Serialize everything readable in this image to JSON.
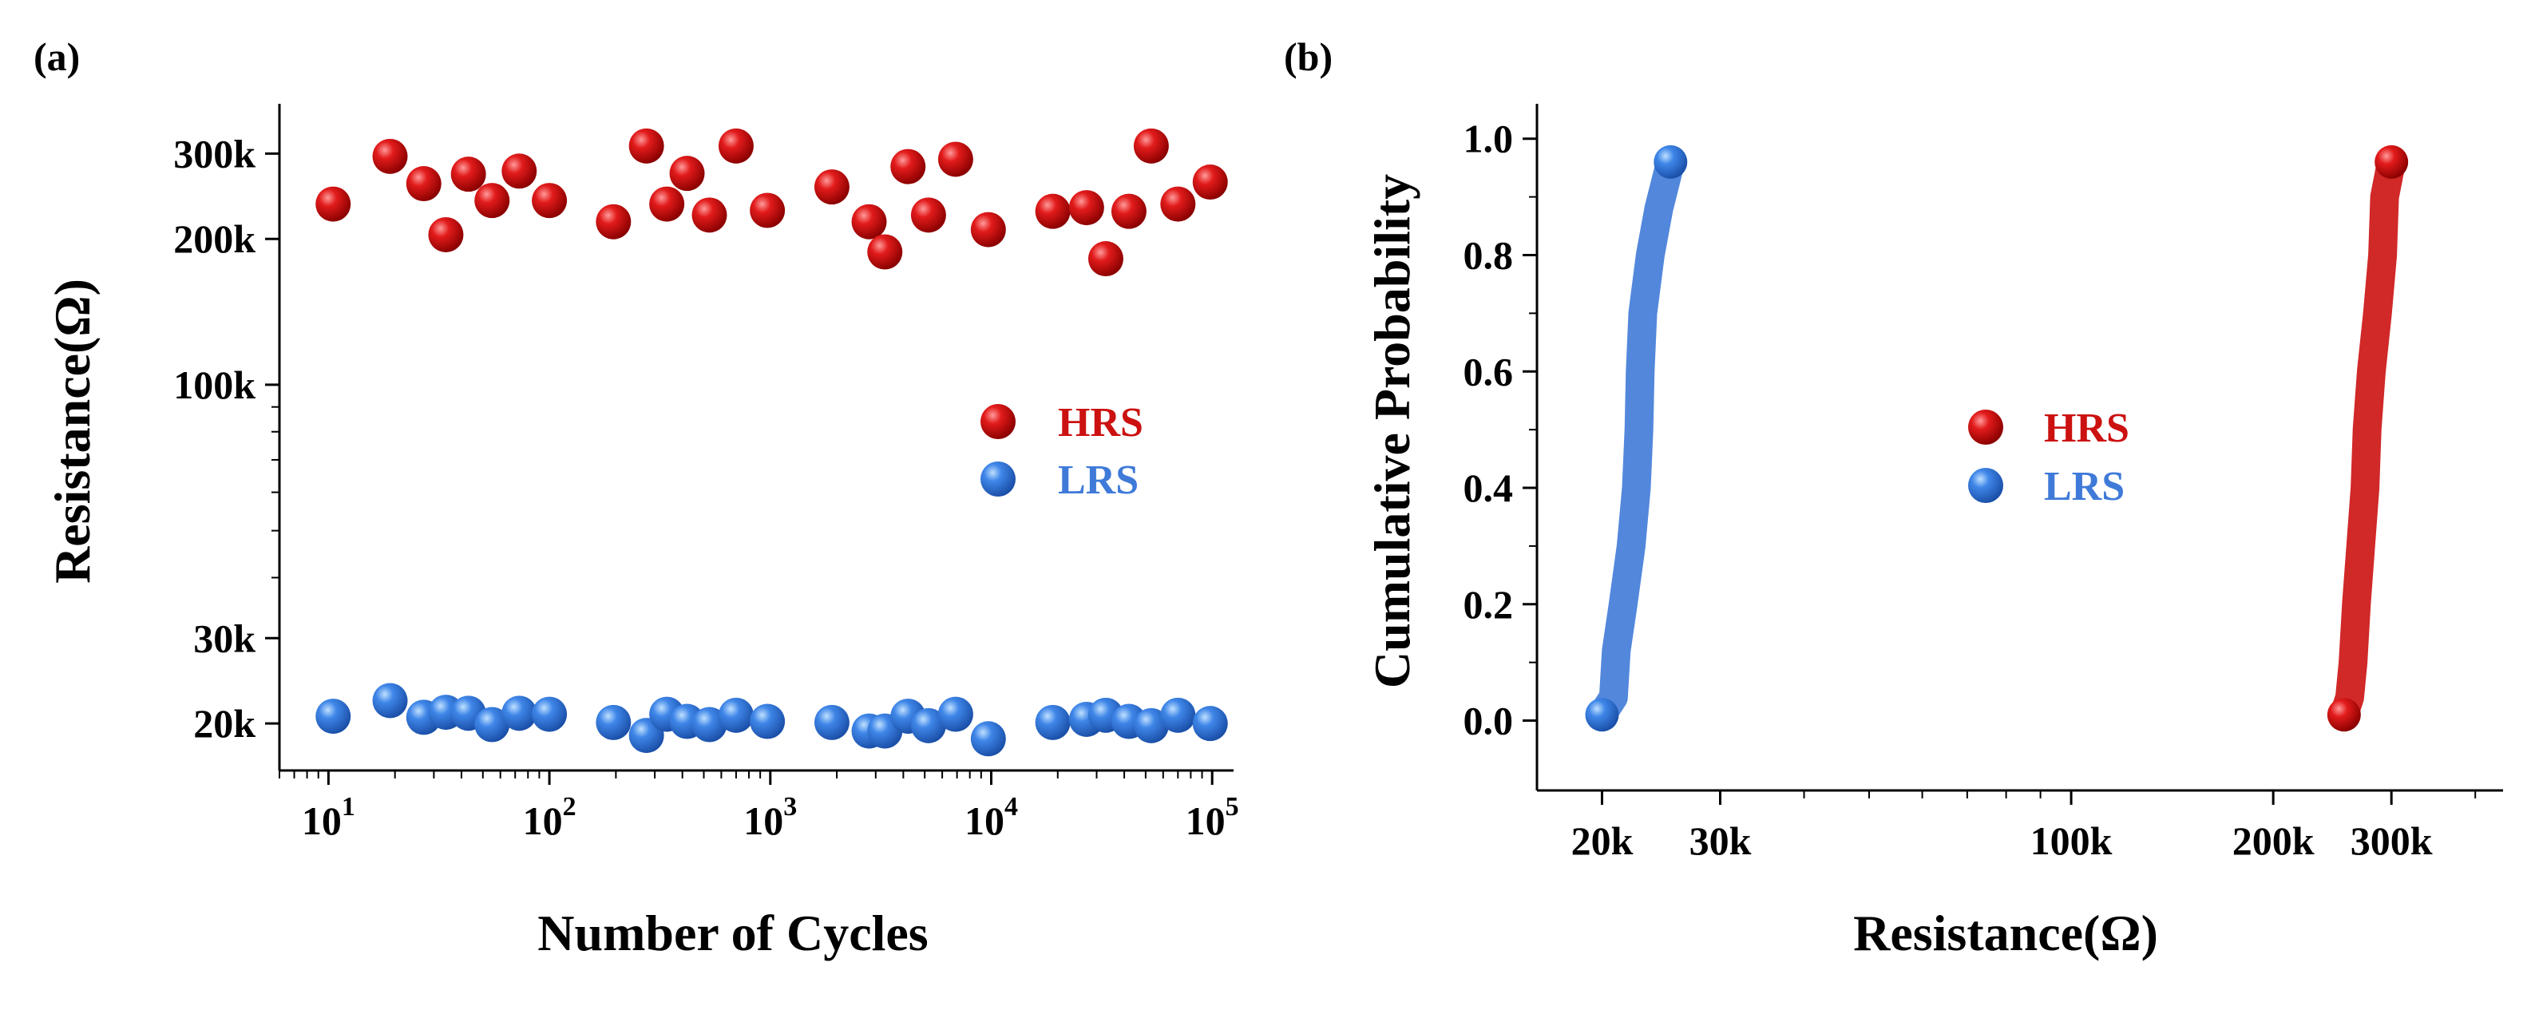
{
  "chart_data": [
    {
      "panel": "(a)",
      "type": "scatter",
      "xscale": "log",
      "yscale": "log",
      "xlabel": "Number of Cycles",
      "ylabel": "Resistance(Ω)",
      "xlim": [
        6,
        125000
      ],
      "ylim": [
        16000,
        380000
      ],
      "xticks": [
        {
          "value": 10,
          "base": "10",
          "exp": "1"
        },
        {
          "value": 100,
          "base": "10",
          "exp": "2"
        },
        {
          "value": 1000,
          "base": "10",
          "exp": "3"
        },
        {
          "value": 10000,
          "base": "10",
          "exp": "4"
        },
        {
          "value": 100000,
          "base": "10",
          "exp": "5"
        }
      ],
      "yticks": [
        {
          "value": 20000,
          "label": "20k"
        },
        {
          "value": 30000,
          "label": "30k"
        },
        {
          "value": 100000,
          "label": "100k"
        },
        {
          "value": 200000,
          "label": "200k"
        },
        {
          "value": 300000,
          "label": "300k"
        }
      ],
      "legend": {
        "position": "center-right",
        "entries": [
          "HRS",
          "LRS"
        ]
      },
      "series": [
        {
          "name": "HRS",
          "color": "#cc1111",
          "points": [
            [
              10.5,
              236000
            ],
            [
              19,
              296000
            ],
            [
              27,
              260000
            ],
            [
              34,
              204000
            ],
            [
              43,
              272000
            ],
            [
              55,
              240000
            ],
            [
              73,
              276000
            ],
            [
              100,
              240000
            ],
            [
              195,
              217000
            ],
            [
              275,
              311000
            ],
            [
              340,
              236000
            ],
            [
              420,
              273000
            ],
            [
              530,
              224000
            ],
            [
              700,
              311000
            ],
            [
              970,
              229000
            ],
            [
              1900,
              256000
            ],
            [
              2800,
              217000
            ],
            [
              3300,
              188000
            ],
            [
              4200,
              282000
            ],
            [
              5200,
              224000
            ],
            [
              6900,
              292000
            ],
            [
              9700,
              209000
            ],
            [
              19000,
              228000
            ],
            [
              27000,
              232000
            ],
            [
              33000,
              182000
            ],
            [
              42000,
              228000
            ],
            [
              53000,
              311000
            ],
            [
              70000,
              236000
            ],
            [
              98000,
              262000
            ]
          ]
        },
        {
          "name": "LRS",
          "color": "#3f7ad8",
          "points": [
            [
              10.5,
              20700
            ],
            [
              19,
              22300
            ],
            [
              27,
              20600
            ],
            [
              34,
              21100
            ],
            [
              43,
              21000
            ],
            [
              55,
              19900
            ],
            [
              73,
              21000
            ],
            [
              100,
              20900
            ],
            [
              195,
              20100
            ],
            [
              275,
              18900
            ],
            [
              340,
              20900
            ],
            [
              420,
              20200
            ],
            [
              530,
              19900
            ],
            [
              700,
              20800
            ],
            [
              970,
              20200
            ],
            [
              1900,
              20100
            ],
            [
              2800,
              19300
            ],
            [
              3300,
              19300
            ],
            [
              4200,
              20700
            ],
            [
              5200,
              19800
            ],
            [
              6900,
              20900
            ],
            [
              9700,
              18600
            ],
            [
              19000,
              20100
            ],
            [
              27000,
              20400
            ],
            [
              33000,
              20800
            ],
            [
              42000,
              20200
            ],
            [
              53000,
              19800
            ],
            [
              70000,
              20800
            ],
            [
              98000,
              20000
            ]
          ]
        }
      ]
    },
    {
      "panel": "(b)",
      "type": "line",
      "xscale": "log",
      "xlabel": "Resistance(Ω)",
      "ylabel": "Cumulative Probability",
      "xlim": [
        16000,
        440000
      ],
      "ylim": [
        -0.12,
        1.06
      ],
      "xticks": [
        {
          "value": 20000,
          "label": "20k"
        },
        {
          "value": 30000,
          "label": "30k"
        },
        {
          "value": 100000,
          "label": "100k"
        },
        {
          "value": 200000,
          "label": "200k"
        },
        {
          "value": 300000,
          "label": "300k"
        }
      ],
      "yticks": [
        {
          "value": 0.0,
          "label": "0.0"
        },
        {
          "value": 0.2,
          "label": "0.2"
        },
        {
          "value": 0.4,
          "label": "0.4"
        },
        {
          "value": 0.6,
          "label": "0.6"
        },
        {
          "value": 0.8,
          "label": "0.8"
        },
        {
          "value": 1.0,
          "label": "1.0"
        }
      ],
      "legend": {
        "position": "center",
        "entries": [
          "HRS",
          "LRS"
        ]
      },
      "series": [
        {
          "name": "HRS",
          "color": "#cc1111",
          "points": [
            [
              255000,
              0.01
            ],
            [
              260000,
              0.04
            ],
            [
              263000,
              0.1
            ],
            [
              266000,
              0.2
            ],
            [
              270000,
              0.3
            ],
            [
              274000,
              0.4
            ],
            [
              276000,
              0.5
            ],
            [
              280000,
              0.6
            ],
            [
              286000,
              0.7
            ],
            [
              291000,
              0.8
            ],
            [
              293000,
              0.9
            ],
            [
              300000,
              0.96
            ]
          ]
        },
        {
          "name": "LRS",
          "color": "#3f7ad8",
          "points": [
            [
              20000,
              0.01
            ],
            [
              20800,
              0.04
            ],
            [
              21000,
              0.12
            ],
            [
              21500,
              0.2
            ],
            [
              22100,
              0.3
            ],
            [
              22500,
              0.4
            ],
            [
              22700,
              0.5
            ],
            [
              22800,
              0.6
            ],
            [
              23000,
              0.7
            ],
            [
              23600,
              0.8
            ],
            [
              24300,
              0.88
            ],
            [
              25300,
              0.96
            ]
          ]
        }
      ]
    }
  ]
}
